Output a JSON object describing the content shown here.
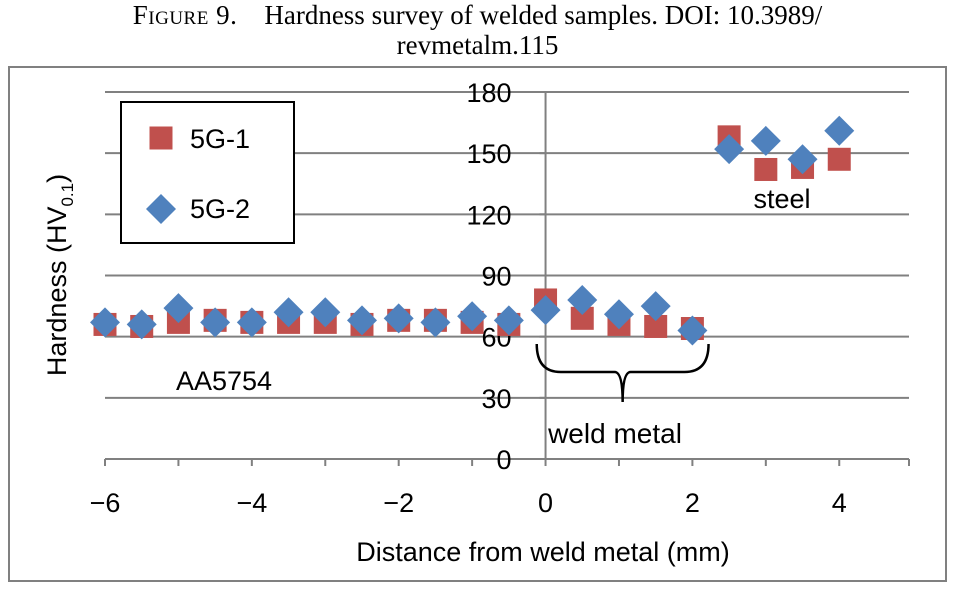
{
  "caption": {
    "figure_label": "Figure 9.",
    "text_line1": "Hardness survey of welded samples. DOI: 10.3989/",
    "text_line2": "revmetalm.115"
  },
  "chart_data": {
    "type": "scatter",
    "title": "",
    "xlabel": "Distance from weld metal (mm)",
    "ylabel_main": "Hardness (HV",
    "ylabel_sub": "0.1",
    "ylabel_close": ")",
    "xlim": [
      -6.0,
      4.95
    ],
    "ylim": [
      0,
      180
    ],
    "x_ticks": [
      -6,
      -4,
      -2,
      0,
      2,
      4
    ],
    "x_tick_labels": [
      "−6",
      "−4",
      "−2",
      "0",
      "2",
      "4"
    ],
    "y_ticks": [
      0,
      30,
      60,
      90,
      120,
      150,
      180
    ],
    "y_tick_labels": [
      "0",
      "30",
      "60",
      "90",
      "120",
      "150",
      "180"
    ],
    "grid": "horizontal",
    "legend_position": "top-left",
    "series": [
      {
        "name": "5G-1",
        "marker": "square",
        "color": "#c0504d",
        "points": [
          [
            -6.0,
            66
          ],
          [
            -5.5,
            65
          ],
          [
            -5.0,
            67
          ],
          [
            -4.5,
            68
          ],
          [
            -4.0,
            67
          ],
          [
            -3.5,
            67
          ],
          [
            -3.0,
            67
          ],
          [
            -2.5,
            66
          ],
          [
            -2.0,
            68
          ],
          [
            -1.5,
            68
          ],
          [
            -1.0,
            67
          ],
          [
            -0.5,
            66
          ],
          [
            0.0,
            78
          ],
          [
            0.5,
            69
          ],
          [
            1.0,
            66
          ],
          [
            1.5,
            65
          ],
          [
            2.0,
            64
          ],
          [
            2.5,
            158
          ],
          [
            3.0,
            142
          ],
          [
            3.5,
            143
          ],
          [
            4.0,
            147
          ]
        ]
      },
      {
        "name": "5G-2",
        "marker": "diamond",
        "color": "#4f81bd",
        "points": [
          [
            -6.0,
            67
          ],
          [
            -5.5,
            66
          ],
          [
            -5.0,
            74
          ],
          [
            -4.5,
            67
          ],
          [
            -4.0,
            67
          ],
          [
            -3.5,
            72
          ],
          [
            -3.0,
            72
          ],
          [
            -2.5,
            68
          ],
          [
            -2.0,
            69
          ],
          [
            -1.5,
            67
          ],
          [
            -1.0,
            70
          ],
          [
            -0.5,
            68
          ],
          [
            0.0,
            73
          ],
          [
            0.5,
            78
          ],
          [
            1.0,
            71
          ],
          [
            1.5,
            75
          ],
          [
            2.0,
            63
          ],
          [
            2.5,
            152
          ],
          [
            3.0,
            156
          ],
          [
            3.5,
            147
          ],
          [
            4.0,
            161
          ]
        ]
      }
    ],
    "annotations": {
      "steel": "steel",
      "aa5754": "AA5754",
      "weld_metal": "weld metal"
    }
  }
}
